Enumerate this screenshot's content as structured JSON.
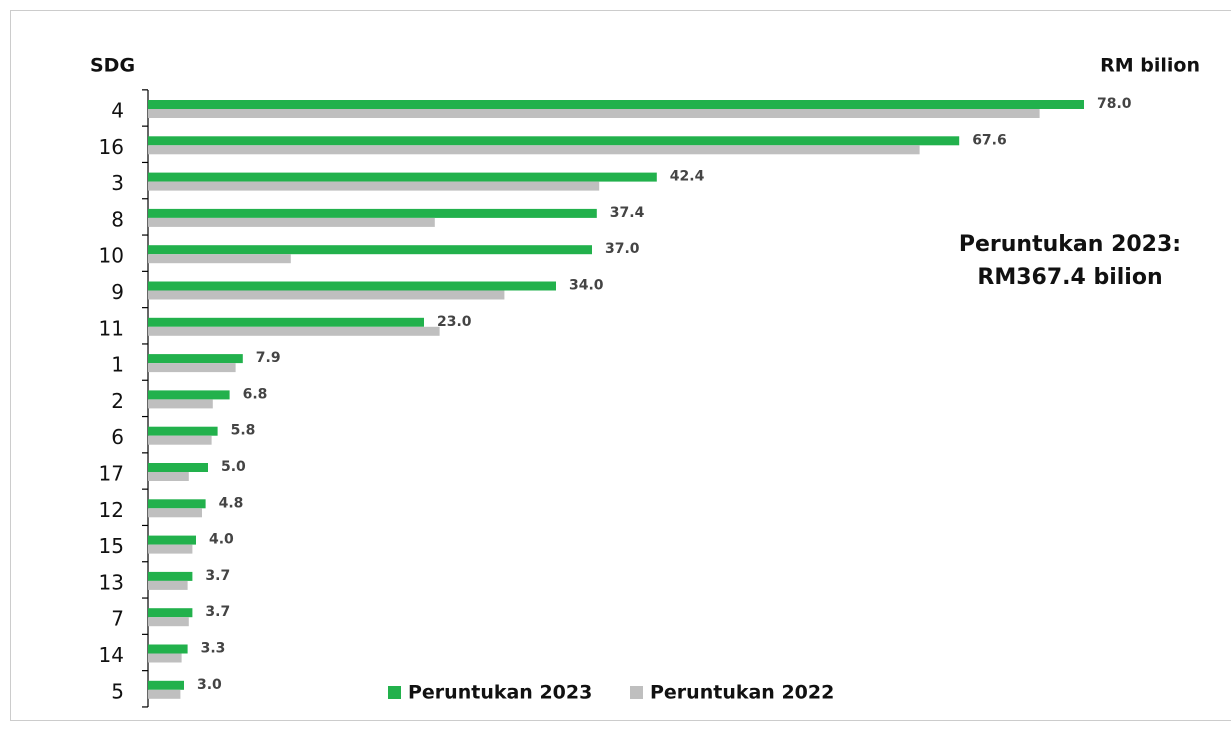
{
  "chart_data": {
    "type": "bar",
    "orientation": "horizontal",
    "y_axis_label": "SDG",
    "unit_label": "RM bilion",
    "annotation": [
      "Peruntukan 2023:",
      "RM367.4 bilion"
    ],
    "categories": [
      "4",
      "16",
      "3",
      "8",
      "10",
      "9",
      "11",
      "1",
      "2",
      "6",
      "17",
      "12",
      "15",
      "13",
      "7",
      "14",
      "5"
    ],
    "series": [
      {
        "name": "Peruntukan 2023",
        "color": "#22b14c",
        "values": [
          78.0,
          67.6,
          42.4,
          37.4,
          37.0,
          34.0,
          23.0,
          7.9,
          6.8,
          5.8,
          5.0,
          4.8,
          4.0,
          3.7,
          3.7,
          3.3,
          3.0
        ],
        "value_labels": [
          "78.0",
          "67.6",
          "42.4",
          "37.4",
          "37.0",
          "34.0",
          "23.0",
          "7.9",
          "6.8",
          "5.8",
          "5.0",
          "4.8",
          "4.0",
          "3.7",
          "3.7",
          "3.3",
          "3.0"
        ]
      },
      {
        "name": "Peruntukan 2022",
        "color": "#bfbfbf",
        "values": [
          74.3,
          64.3,
          37.6,
          23.9,
          11.9,
          29.7,
          24.3,
          7.3,
          5.4,
          5.3,
          3.4,
          4.5,
          3.7,
          3.3,
          3.4,
          2.8,
          2.7
        ]
      }
    ],
    "xlim": [
      0,
      88
    ]
  }
}
